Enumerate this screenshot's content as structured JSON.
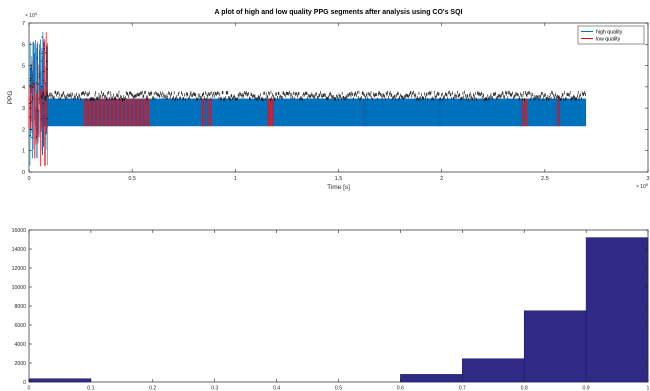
{
  "chart_data": [
    {
      "type": "line",
      "title": "A plot of high and low quality PPG segments after analysis using CO's SQI",
      "xlabel": "Time [s]",
      "ylabel": "PPG",
      "x_exponent": "× 10",
      "x_exponent_power": "5",
      "y_exponent": "× 10",
      "y_exponent_power": "4",
      "xlim": [
        0,
        3
      ],
      "ylim": [
        0,
        7
      ],
      "x_ticks": [
        "0",
        "0.5",
        "1",
        "1.5",
        "2",
        "2.5",
        "3"
      ],
      "y_ticks": [
        "0",
        "1",
        "2",
        "3",
        "4",
        "5",
        "6",
        "7"
      ],
      "legend_position": "top-right",
      "series": [
        {
          "name": "high quality",
          "color": "#0072bd",
          "band_start": 0.06,
          "band_end": 2.7,
          "band_low": 2.15,
          "band_high": 3.45
        },
        {
          "name": "low quality",
          "color": "#ff0000",
          "segments": [
            [
              0.0,
              0.09
            ],
            [
              0.27,
              0.58
            ],
            [
              0.84,
              0.88
            ],
            [
              1.16,
              1.18
            ],
            [
              1.62,
              1.64
            ],
            [
              1.98,
              2.0
            ],
            [
              2.39,
              2.41
            ],
            [
              2.56,
              2.57
            ]
          ]
        }
      ],
      "peaks_color": "#000000",
      "peaks_level": 3.6
    },
    {
      "type": "bar",
      "bar_color": "#2e2a85",
      "xlim": [
        0,
        1
      ],
      "ylim": [
        0,
        16000
      ],
      "x_ticks": [
        "0",
        "0.1",
        "0.2",
        "0.3",
        "0.4",
        "0.5",
        "0.6",
        "0.7",
        "0.8",
        "0.9",
        "1"
      ],
      "y_ticks": [
        "0",
        "2000",
        "4000",
        "6000",
        "8000",
        "10000",
        "12000",
        "14000",
        "16000"
      ],
      "bins": [
        {
          "start": 0.0,
          "end": 0.1,
          "value": 350
        },
        {
          "start": 0.1,
          "end": 0.2,
          "value": 0
        },
        {
          "start": 0.2,
          "end": 0.3,
          "value": 0
        },
        {
          "start": 0.3,
          "end": 0.4,
          "value": 0
        },
        {
          "start": 0.4,
          "end": 0.5,
          "value": 0
        },
        {
          "start": 0.5,
          "end": 0.6,
          "value": 0
        },
        {
          "start": 0.6,
          "end": 0.7,
          "value": 800
        },
        {
          "start": 0.7,
          "end": 0.8,
          "value": 2450
        },
        {
          "start": 0.8,
          "end": 0.9,
          "value": 7500
        },
        {
          "start": 0.9,
          "end": 1.0,
          "value": 15200
        }
      ]
    }
  ]
}
